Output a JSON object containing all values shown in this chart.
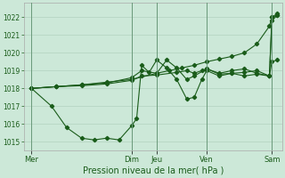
{
  "background_color": "#cce8d8",
  "grid_color": "#aaccb8",
  "line_color": "#1a5c1a",
  "title": "Pression niveau de la mer( hPa )",
  "ylim": [
    1014.5,
    1022.8
  ],
  "yticks": [
    1015,
    1016,
    1017,
    1018,
    1019,
    1020,
    1021,
    1022
  ],
  "x_day_labels": [
    "Mer",
    "Dim",
    "Jeu",
    "Ven",
    "Sam"
  ],
  "x_day_positions": [
    0,
    40,
    50,
    70,
    96
  ],
  "xlim": [
    -3,
    100
  ],
  "vlines": [
    0,
    40,
    50,
    70,
    96
  ],
  "series_straight": {
    "x": [
      0,
      10,
      20,
      30,
      40,
      50,
      55,
      60,
      65,
      70,
      75,
      80,
      85,
      90,
      95,
      96,
      98
    ],
    "y": [
      1018.0,
      1018.1,
      1018.2,
      1018.35,
      1018.5,
      1018.85,
      1019.0,
      1019.15,
      1019.3,
      1019.5,
      1019.65,
      1019.8,
      1020.0,
      1020.5,
      1021.5,
      1022.0,
      1022.2
    ]
  },
  "series_dip": {
    "x": [
      0,
      8,
      14,
      20,
      25,
      30,
      35,
      40,
      42,
      44,
      47,
      50,
      54,
      58,
      62,
      65,
      68,
      70,
      75,
      80,
      85,
      90,
      95,
      96,
      98
    ],
    "y": [
      1018.0,
      1017.0,
      1015.8,
      1015.2,
      1015.1,
      1015.2,
      1015.1,
      1015.9,
      1016.3,
      1019.3,
      1018.9,
      1019.6,
      1019.15,
      1018.5,
      1017.4,
      1017.5,
      1018.5,
      1019.0,
      1018.7,
      1018.85,
      1018.7,
      1018.8,
      1018.7,
      1022.0,
      1022.1
    ]
  },
  "series_mid1": {
    "x": [
      0,
      10,
      20,
      30,
      40,
      44,
      50,
      54,
      58,
      62,
      65,
      70,
      75,
      80,
      85,
      90,
      95,
      96,
      98
    ],
    "y": [
      1018.0,
      1018.1,
      1018.2,
      1018.3,
      1018.6,
      1019.0,
      1018.85,
      1019.6,
      1019.15,
      1018.5,
      1018.7,
      1019.1,
      1018.8,
      1018.85,
      1018.9,
      1019.0,
      1018.7,
      1021.8,
      1022.1
    ]
  },
  "series_mid2": {
    "x": [
      0,
      10,
      20,
      30,
      40,
      44,
      50,
      58,
      62,
      65,
      68,
      70,
      75,
      80,
      85,
      90,
      95,
      96,
      98
    ],
    "y": [
      1018.0,
      1018.1,
      1018.15,
      1018.25,
      1018.45,
      1018.7,
      1018.75,
      1018.9,
      1019.0,
      1018.85,
      1019.0,
      1019.1,
      1018.85,
      1019.0,
      1019.1,
      1018.85,
      1018.7,
      1019.5,
      1019.6
    ]
  }
}
